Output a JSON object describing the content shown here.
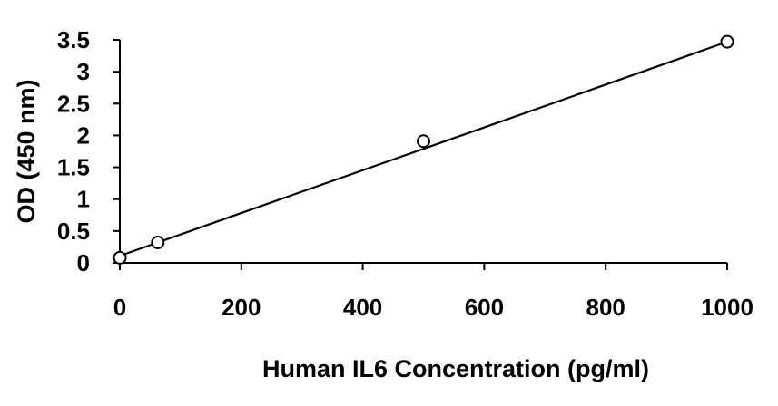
{
  "chart_data": {
    "type": "scatter",
    "title": "",
    "xlabel": "Human IL6 Concentration (pg/ml)",
    "ylabel": "OD (450 nm)",
    "xlim": [
      0,
      1000
    ],
    "ylim": [
      0,
      3.5
    ],
    "x_ticks": [
      "0",
      "200",
      "400",
      "600",
      "800",
      "1000"
    ],
    "y_ticks": [
      "0",
      "0.5",
      "1",
      "1.5",
      "2",
      "2.5",
      "3",
      "3.5"
    ],
    "grid": false,
    "legend": "none",
    "series": [
      {
        "points": [
          {
            "x": 0,
            "y": 0.08
          },
          {
            "x": 62.5,
            "y": 0.32
          },
          {
            "x": 500,
            "y": 1.91
          },
          {
            "x": 1000,
            "y": 3.47
          }
        ],
        "marker": "open-circle",
        "marker_color": "#000000"
      }
    ],
    "trendline": {
      "type": "linear",
      "from": {
        "x": 0,
        "y": 0.11
      },
      "to": {
        "x": 1000,
        "y": 3.47
      },
      "color": "#000000"
    }
  }
}
